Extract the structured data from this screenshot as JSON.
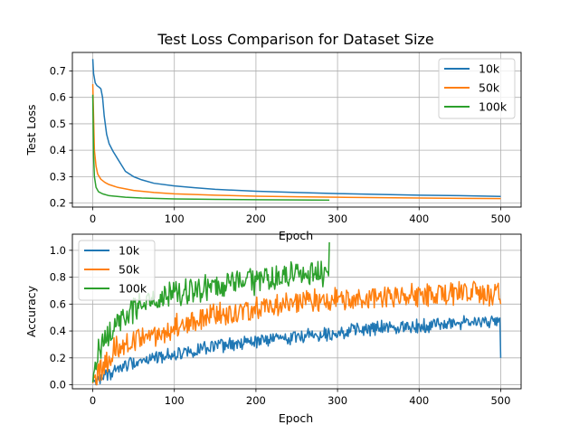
{
  "chart_data": [
    {
      "type": "line",
      "title": "Test Loss Comparison for Dataset Size",
      "xlabel": "Epoch",
      "ylabel": "Test Loss",
      "xlim": [
        -25,
        525
      ],
      "ylim": [
        0.185,
        0.77
      ],
      "xticks": [
        0,
        100,
        200,
        300,
        400,
        500
      ],
      "yticks": [
        0.2,
        0.3,
        0.4,
        0.5,
        0.6,
        0.7
      ],
      "xtick_labels": [
        "0",
        "100",
        "200",
        "300",
        "400",
        "500"
      ],
      "ytick_labels": [
        "0.2",
        "0.3",
        "0.4",
        "0.5",
        "0.6",
        "0.7"
      ],
      "grid": true,
      "legend_position": "top-right",
      "series": [
        {
          "name": "10k",
          "color": "#1f77b4",
          "points": [
            [
              0,
              0.745
            ],
            [
              1,
              0.69
            ],
            [
              3,
              0.655
            ],
            [
              5,
              0.645
            ],
            [
              8,
              0.638
            ],
            [
              10,
              0.632
            ],
            [
              12,
              0.6
            ],
            [
              14,
              0.53
            ],
            [
              17,
              0.46
            ],
            [
              20,
              0.425
            ],
            [
              25,
              0.395
            ],
            [
              30,
              0.37
            ],
            [
              35,
              0.345
            ],
            [
              40,
              0.32
            ],
            [
              50,
              0.3
            ],
            [
              60,
              0.288
            ],
            [
              75,
              0.275
            ],
            [
              100,
              0.265
            ],
            [
              125,
              0.258
            ],
            [
              150,
              0.252
            ],
            [
              200,
              0.245
            ],
            [
              250,
              0.24
            ],
            [
              300,
              0.236
            ],
            [
              350,
              0.233
            ],
            [
              400,
              0.23
            ],
            [
              450,
              0.228
            ],
            [
              500,
              0.225
            ]
          ]
        },
        {
          "name": "50k",
          "color": "#ff7f0e",
          "points": [
            [
              0,
              0.65
            ],
            [
              2,
              0.4
            ],
            [
              4,
              0.34
            ],
            [
              6,
              0.31
            ],
            [
              10,
              0.29
            ],
            [
              15,
              0.278
            ],
            [
              20,
              0.27
            ],
            [
              30,
              0.26
            ],
            [
              50,
              0.248
            ],
            [
              75,
              0.24
            ],
            [
              100,
              0.235
            ],
            [
              150,
              0.23
            ],
            [
              200,
              0.226
            ],
            [
              250,
              0.224
            ],
            [
              300,
              0.222
            ],
            [
              400,
              0.219
            ],
            [
              500,
              0.217
            ]
          ]
        },
        {
          "name": "100k",
          "color": "#2ca02c",
          "points": [
            [
              0,
              0.61
            ],
            [
              1,
              0.38
            ],
            [
              2,
              0.3
            ],
            [
              4,
              0.26
            ],
            [
              7,
              0.243
            ],
            [
              12,
              0.235
            ],
            [
              20,
              0.228
            ],
            [
              40,
              0.222
            ],
            [
              60,
              0.219
            ],
            [
              100,
              0.216
            ],
            [
              150,
              0.214
            ],
            [
              200,
              0.213
            ],
            [
              250,
              0.212
            ],
            [
              290,
              0.211
            ]
          ]
        }
      ]
    },
    {
      "type": "line",
      "title": "",
      "xlabel": "Epoch",
      "ylabel": "Accuracy",
      "xlim": [
        -25,
        525
      ],
      "ylim": [
        -0.03,
        1.12
      ],
      "xticks": [
        0,
        100,
        200,
        300,
        400,
        500
      ],
      "yticks": [
        0.0,
        0.2,
        0.4,
        0.6,
        0.8,
        1.0
      ],
      "xtick_labels": [
        "0",
        "100",
        "200",
        "300",
        "400",
        "500"
      ],
      "ytick_labels": [
        "0.0",
        "0.2",
        "0.4",
        "0.6",
        "0.8",
        "1.0"
      ],
      "grid": true,
      "legend_position": "top-left",
      "series": [
        {
          "name": "10k",
          "color": "#1f77b4",
          "trend": [
            [
              0,
              0.02
            ],
            [
              10,
              0.05
            ],
            [
              25,
              0.1
            ],
            [
              50,
              0.17
            ],
            [
              100,
              0.23
            ],
            [
              150,
              0.28
            ],
            [
              200,
              0.32
            ],
            [
              250,
              0.36
            ],
            [
              300,
              0.39
            ],
            [
              350,
              0.42
            ],
            [
              400,
              0.44
            ],
            [
              450,
              0.46
            ],
            [
              500,
              0.47
            ]
          ],
          "noise": 0.045,
          "end_point": [
            500,
            0.2
          ]
        },
        {
          "name": "50k",
          "color": "#ff7f0e",
          "trend": [
            [
              0,
              0.02
            ],
            [
              10,
              0.12
            ],
            [
              25,
              0.25
            ],
            [
              50,
              0.33
            ],
            [
              100,
              0.43
            ],
            [
              150,
              0.51
            ],
            [
              200,
              0.56
            ],
            [
              250,
              0.6
            ],
            [
              300,
              0.63
            ],
            [
              350,
              0.65
            ],
            [
              400,
              0.67
            ],
            [
              450,
              0.68
            ],
            [
              500,
              0.69
            ]
          ],
          "noise": 0.08,
          "end_point": [
            500,
            0.6
          ]
        },
        {
          "name": "100k",
          "color": "#2ca02c",
          "trend": [
            [
              0,
              0.02
            ],
            [
              5,
              0.2
            ],
            [
              15,
              0.35
            ],
            [
              30,
              0.47
            ],
            [
              60,
              0.6
            ],
            [
              100,
              0.67
            ],
            [
              150,
              0.73
            ],
            [
              200,
              0.78
            ],
            [
              250,
              0.82
            ],
            [
              290,
              0.84
            ]
          ],
          "noise": 0.09,
          "end_point": [
            290,
            1.06
          ]
        }
      ]
    }
  ]
}
